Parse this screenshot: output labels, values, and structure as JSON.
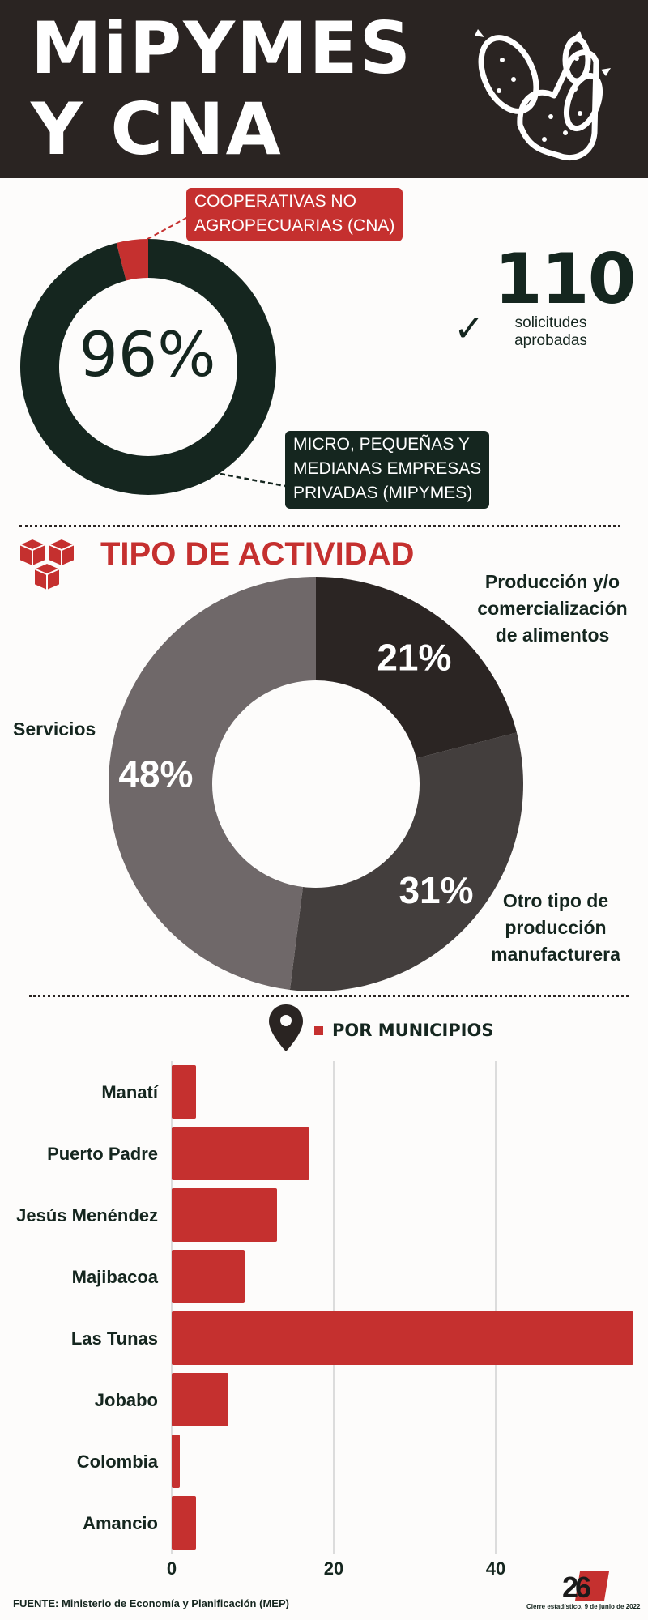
{
  "header": {
    "title_line1": "MiPYMES",
    "title_line2": "Y CNA",
    "icon": "cactus-icon"
  },
  "summary": {
    "pct_center": "96%",
    "cna_label_lines": [
      "COOPERATIVAS NO",
      "AGROPECUARIAS (CNA)"
    ],
    "mipymes_label_lines": [
      "MICRO, PEQUEÑAS Y",
      "MEDIANAS EMPRESAS",
      "PRIVADAS (MIPYMES)"
    ],
    "approved_count": "110",
    "approved_text_lines": [
      "solicitudes",
      "aprobadas"
    ],
    "check_symbol": "✓"
  },
  "activity": {
    "title": "TIPO DE ACTIVIDAD",
    "icon": "cubes-icon",
    "label_prod": [
      "Producción y/o",
      "comercialización",
      "de alimentos"
    ],
    "label_otro": [
      "Otro tipo de",
      "producción",
      "manufacturera"
    ],
    "label_serv": "Servicios"
  },
  "municipios": {
    "title": "POR MUNICIPIOS",
    "icon": "location-pin-icon"
  },
  "chart_data": [
    {
      "type": "pie",
      "title": "",
      "categories": [
        "COOPERATIVAS NO AGROPECUARIAS (CNA)",
        "MICRO, PEQUEÑAS Y MEDIANAS EMPRESAS PRIVADAS (MIPYMES)"
      ],
      "values": [
        4,
        96
      ],
      "colors": [
        "#c5302f",
        "#15261f"
      ],
      "center_label": "96%"
    },
    {
      "type": "pie",
      "title": "TIPO DE ACTIVIDAD",
      "categories": [
        "Producción y/o comercialización de alimentos",
        "Otro tipo de producción manufacturera",
        "Servicios"
      ],
      "values": [
        21,
        31,
        48
      ],
      "value_labels": [
        "21%",
        "31%",
        "48%"
      ],
      "colors": [
        "#2b2523",
        "#433e3d",
        "#6f6869"
      ]
    },
    {
      "type": "bar",
      "orientation": "horizontal",
      "title": "POR MUNICIPIOS",
      "categories": [
        "Manatí",
        "Puerto Padre",
        "Jesús Menéndez",
        "Majibacoa",
        "Las Tunas",
        "Jobabo",
        "Colombia",
        "Amancio"
      ],
      "values": [
        3,
        17,
        13,
        9,
        57,
        7,
        1,
        3
      ],
      "xlim": [
        0,
        57
      ],
      "xticks": [
        0,
        20,
        40
      ],
      "tick_labels": [
        "0",
        "20",
        "40"
      ],
      "grid": true,
      "color": "#c5302f"
    }
  ],
  "footer": {
    "source": "FUENTE: Ministerio de Economía y Planificación (MEP)",
    "date_note": "Cierre estadístico, 9 de junio de 2022",
    "logo_text": "26"
  }
}
